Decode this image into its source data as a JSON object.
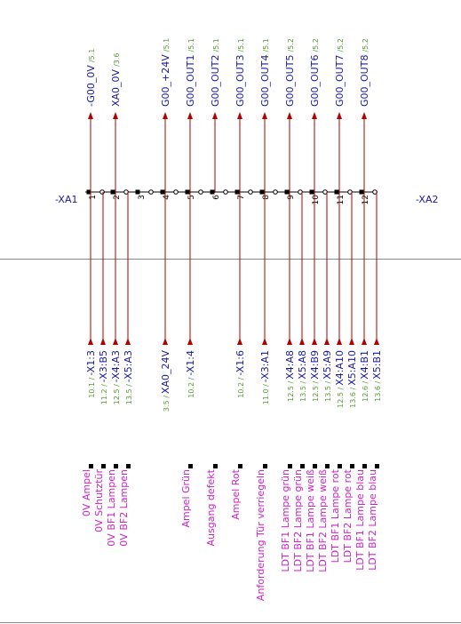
{
  "strip_left": "-XA1",
  "strip_right": "-XA2",
  "terminals": [
    "1",
    "2",
    "3",
    "4",
    "5",
    "6",
    "7",
    "8",
    "9",
    "10",
    "11",
    "12"
  ],
  "top_signals": [
    {
      "label": "-G00_0V",
      "ref": "/5.1"
    },
    {
      "label": "XA0_0V",
      "ref": "/3.6"
    },
    {
      "label": "G00_+24V",
      "ref": "/5.1"
    },
    {
      "label": "G00_OUT1",
      "ref": "/5.1"
    },
    {
      "label": "G00_OUT2",
      "ref": "/5.1"
    },
    {
      "label": "G00_OUT3",
      "ref": "/5.1"
    },
    {
      "label": "G00_OUT4",
      "ref": "/5.1"
    },
    {
      "label": "G00_OUT5",
      "ref": "/5.2"
    },
    {
      "label": "G00_OUT6",
      "ref": "/5.2"
    },
    {
      "label": "G00_OUT7",
      "ref": "/5.2"
    },
    {
      "label": "G00_OUT8",
      "ref": "/5.2"
    }
  ],
  "bottom_connections": [
    {
      "ref": "10.1 /",
      "target": "-X1:3"
    },
    {
      "ref": "11.2 /",
      "target": "-X3:B5"
    },
    {
      "ref": "12.5 /",
      "target": "-X4:A3"
    },
    {
      "ref": "13.5 /",
      "target": "-X5:A3"
    },
    {
      "ref": "3.5 /",
      "target": "XA0_24V"
    },
    {
      "ref": "10.2 /",
      "target": "-X1:4"
    },
    {
      "ref": "10.2 /",
      "target": "-X1:6"
    },
    {
      "ref": "11.0 /",
      "target": "-X3:A1"
    },
    {
      "ref": "12.5 /",
      "target": "X4:A8"
    },
    {
      "ref": "13.5 /",
      "target": "X5:A8"
    },
    {
      "ref": "12.5 /",
      "target": "X4:B9"
    },
    {
      "ref": "13.5 /",
      "target": "X5:A9"
    },
    {
      "ref": "12.5 /",
      "target": "X4:A10"
    },
    {
      "ref": "13.6 /",
      "target": "X5:A10"
    },
    {
      "ref": "12.6 /",
      "target": "X4:B1"
    },
    {
      "ref": "13.6 /",
      "target": "X5:B1"
    }
  ],
  "device_labels": [
    "0V Ampel",
    "0V Schutztür",
    "0V BF1 Lampen",
    "0V BF2 Lampen",
    "Ampel Grün",
    "Ausgang defekt",
    "Ampel Rot",
    "Anforderung Tür verriegeln",
    "LDT BF1 Lampe grün",
    "LDT BF2 Lampe grün",
    "LDT BF1 Lampe weiß",
    "LDT BF2 Lampe weiß",
    "LDT BF1 Lampe rot",
    "LDT BF2 Lampe rot",
    "LDT BF1 Lampe blau",
    "LDT BF2 Lampe blau"
  ]
}
